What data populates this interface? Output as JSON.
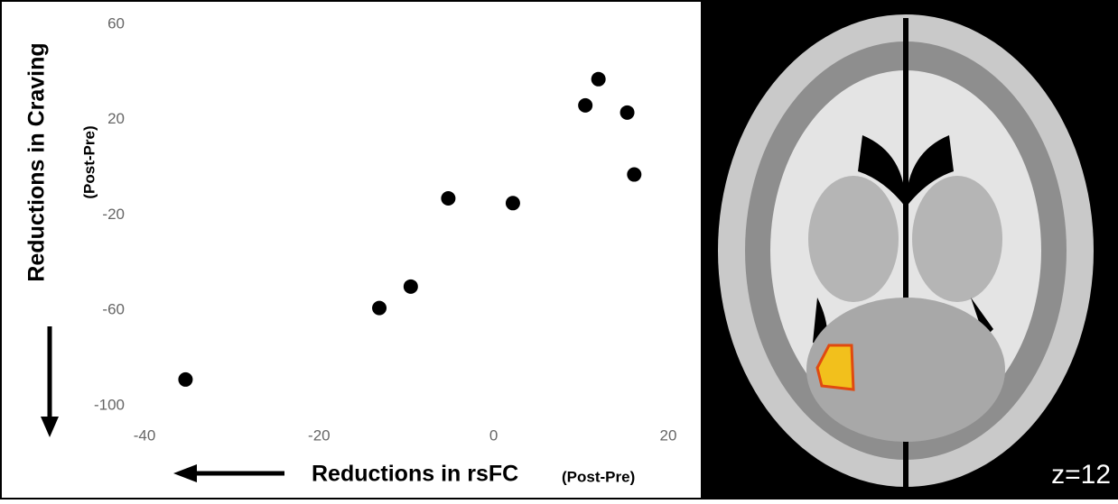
{
  "chart_data": {
    "type": "scatter",
    "x": [
      -35.3,
      -13.1,
      -9.5,
      -5.2,
      2.2,
      10.5,
      12,
      15.3,
      16.1
    ],
    "values": [
      -89,
      -59,
      -50,
      -13,
      -15,
      26,
      37,
      23,
      -3
    ],
    "color": "#000000",
    "xlim": [
      -40,
      20
    ],
    "xticks": [
      -40,
      -20,
      0,
      20
    ],
    "ylim": [
      -100,
      60
    ],
    "yticks": [
      60,
      20,
      -20,
      -60,
      -100
    ],
    "y_label": "Reductions in Craving",
    "y_label_sub": "(Post-Pre)",
    "x_label": "Reductions in rsFC",
    "x_label_sub": "(Post-Pre)",
    "image_label": "z=12"
  }
}
